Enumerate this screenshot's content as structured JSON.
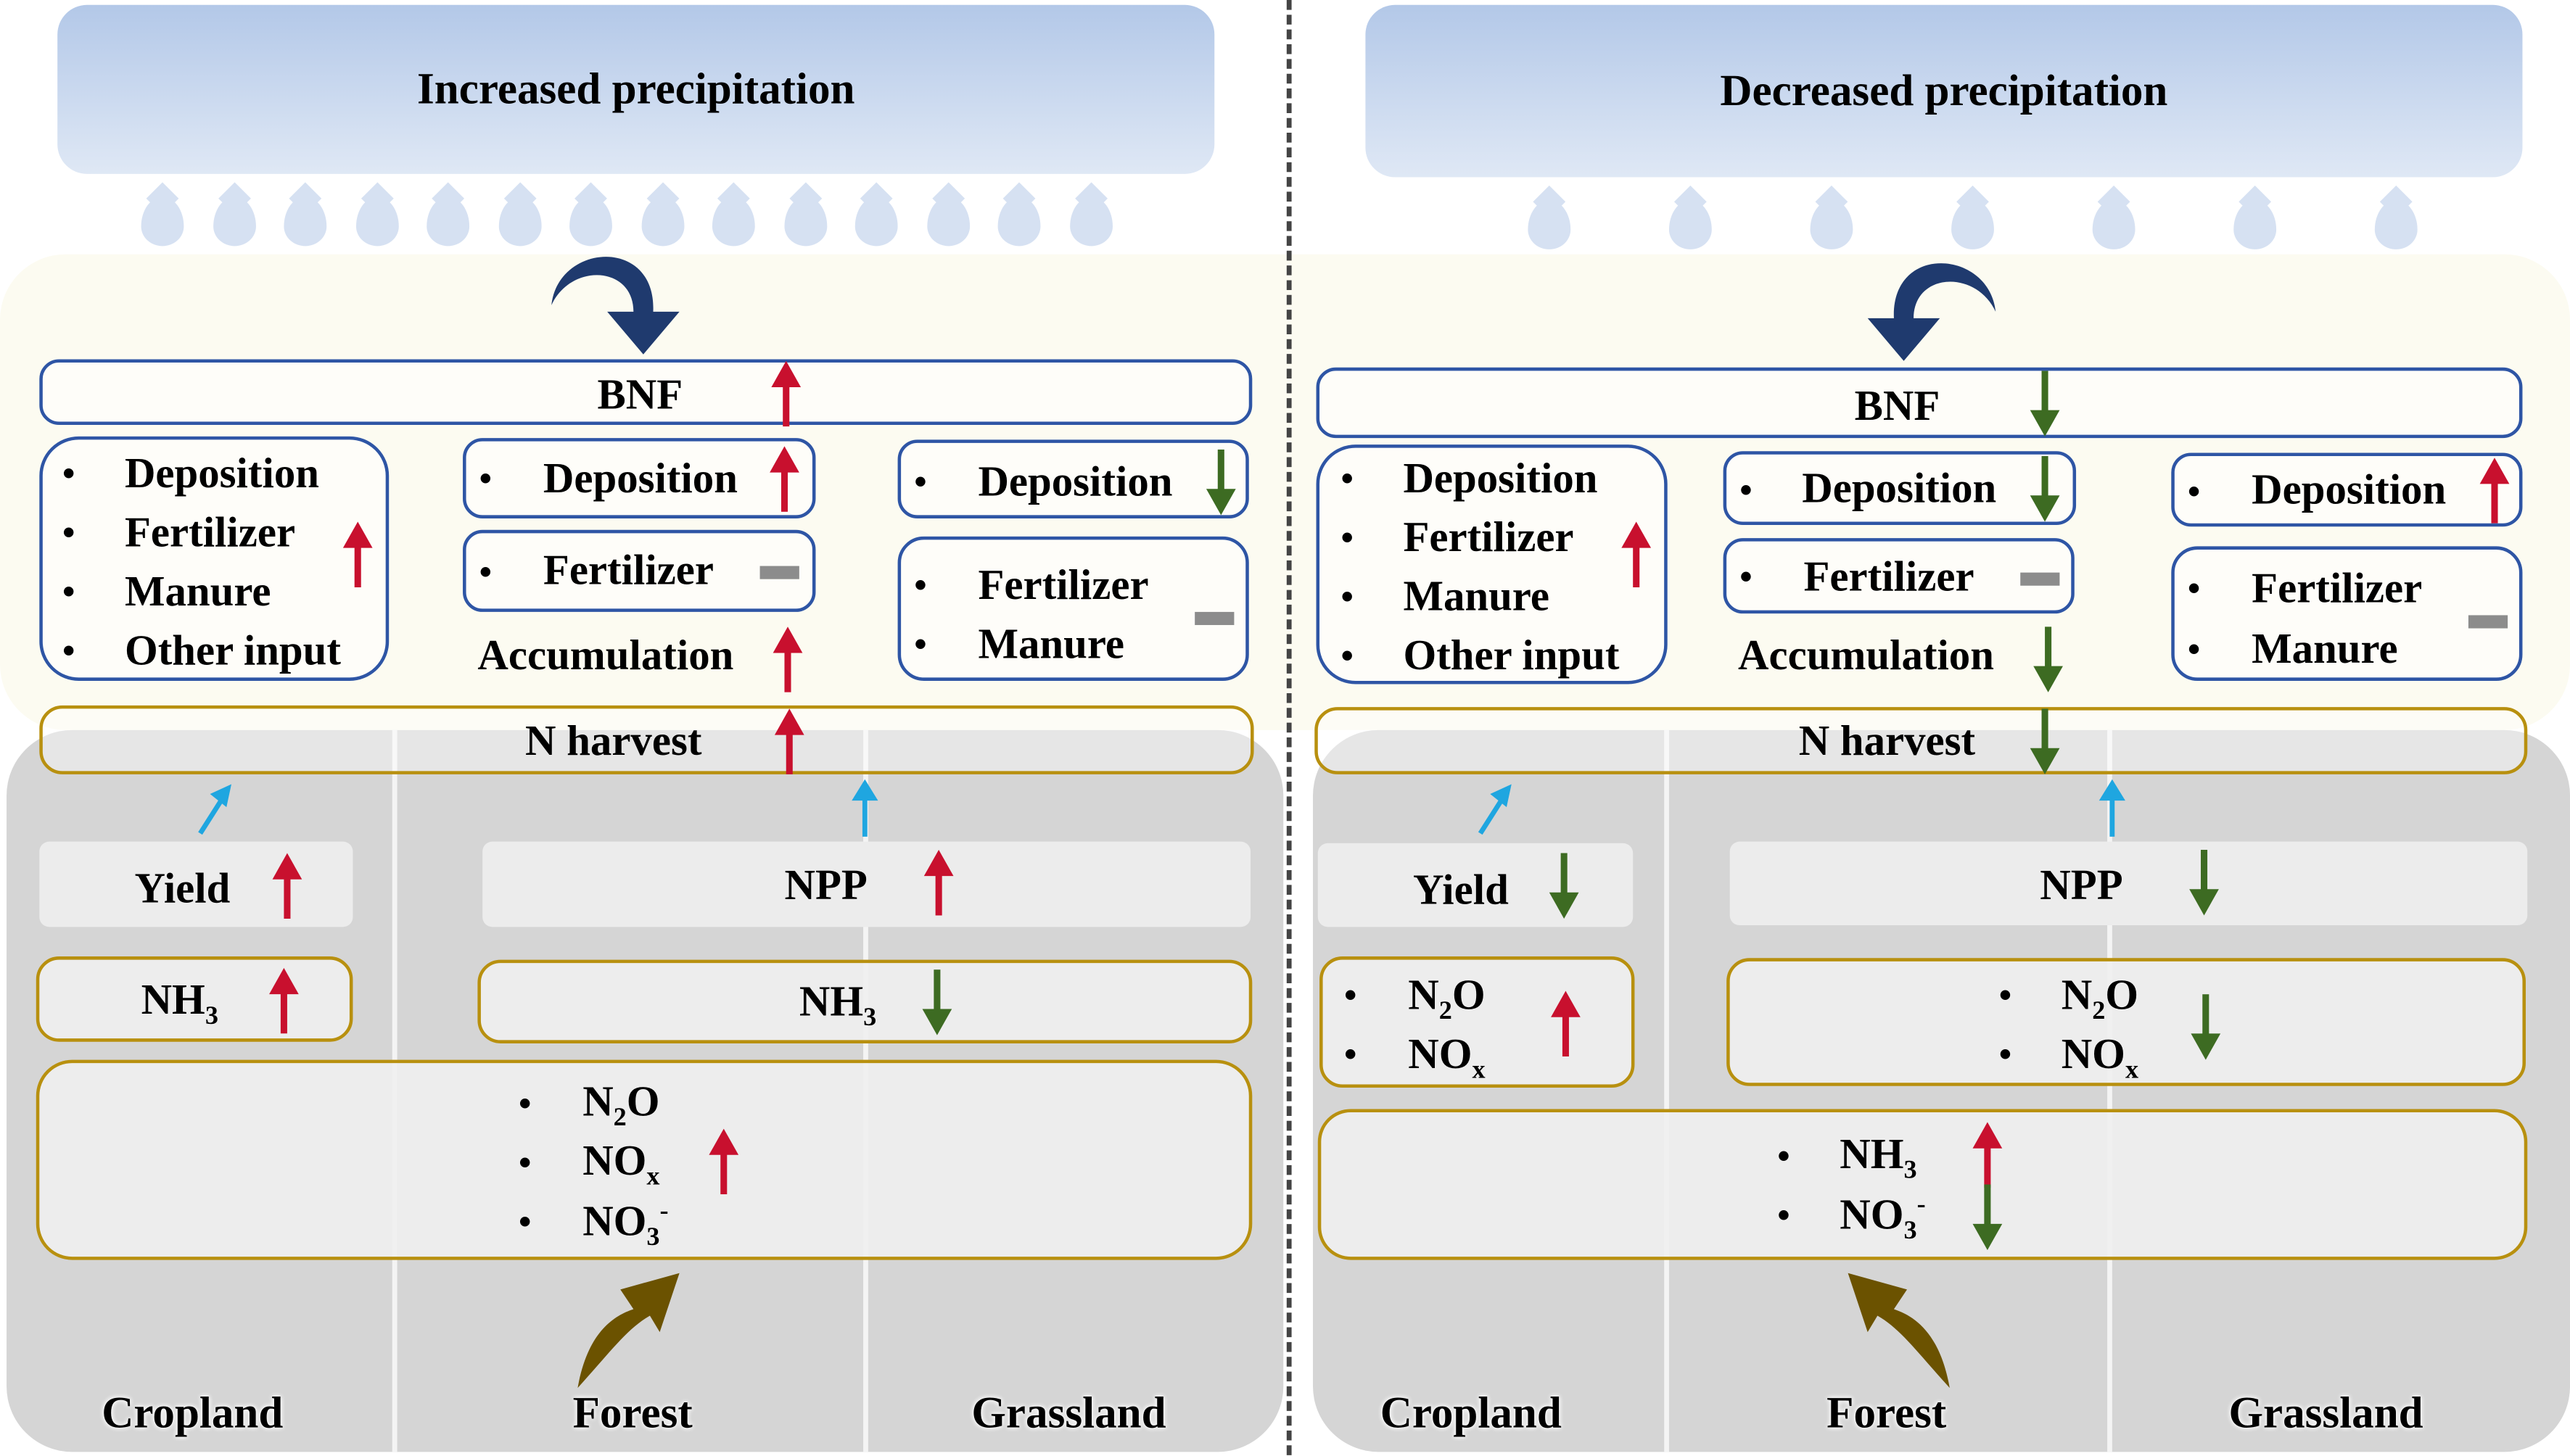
{
  "colors": {
    "increase": "#c8102e",
    "decrease": "#3d6b22",
    "unchanged": "#8c8c8c",
    "bnf_arrow": "#1f3a6e",
    "box_blue": "#2e55a5",
    "box_gold": "#b8900f",
    "uptake_arrow": "#1fa6e0",
    "soil_arrow": "#6b5200"
  },
  "left": {
    "title": "Increased precipitation",
    "bnf": {
      "label": "BNF",
      "trend": "increase"
    },
    "cropland_inputs": {
      "items": [
        "Deposition",
        "Fertilizer",
        "Manure",
        "Other input"
      ],
      "trend": "increase"
    },
    "forest_deposition": {
      "label": "Deposition",
      "trend": "increase"
    },
    "forest_fertilizer": {
      "label": "Fertilizer",
      "trend": "unchanged"
    },
    "forest_accumulation": {
      "label": "Accumulation",
      "trend": "increase"
    },
    "grassland_deposition": {
      "label": "Deposition",
      "trend": "decrease"
    },
    "grassland_inputs": {
      "items": [
        "Fertilizer",
        "Manure"
      ],
      "trend": "unchanged"
    },
    "n_harvest": {
      "label": "N harvest",
      "trend": "increase"
    },
    "yield": {
      "label": "Yield",
      "trend": "increase"
    },
    "npp": {
      "label": "NPP",
      "trend": "increase"
    },
    "cropland_nh3": {
      "base": "NH",
      "sub": "3",
      "trend": "increase"
    },
    "other_nh3": {
      "base": "NH",
      "sub": "3",
      "trend": "decrease"
    },
    "losses": {
      "n2o": {
        "a": "N",
        "sub": "2",
        "b": "O"
      },
      "nox": {
        "a": "NO",
        "sub": "x"
      },
      "no3": {
        "a": "NO",
        "sub": "3",
        "sup": "-"
      },
      "trend": "increase"
    },
    "land_labels": [
      "Cropland",
      "Forest",
      "Grassland"
    ]
  },
  "right": {
    "title": "Decreased precipitation",
    "bnf": {
      "label": "BNF",
      "trend": "decrease"
    },
    "cropland_inputs": {
      "items": [
        "Deposition",
        "Fertilizer",
        "Manure",
        "Other input"
      ],
      "trend": "increase"
    },
    "forest_deposition": {
      "label": "Deposition",
      "trend": "decrease"
    },
    "forest_fertilizer": {
      "label": "Fertilizer",
      "trend": "unchanged"
    },
    "forest_accumulation": {
      "label": "Accumulation",
      "trend": "decrease"
    },
    "grassland_deposition": {
      "label": "Deposition",
      "trend": "increase"
    },
    "grassland_inputs": {
      "items": [
        "Fertilizer",
        "Manure"
      ],
      "trend": "unchanged"
    },
    "n_harvest": {
      "label": "N harvest",
      "trend": "decrease"
    },
    "yield": {
      "label": "Yield",
      "trend": "decrease"
    },
    "npp": {
      "label": "NPP",
      "trend": "decrease"
    },
    "cropland_gas": {
      "n2o": {
        "a": "N",
        "sub": "2",
        "b": "O"
      },
      "nox": {
        "a": "NO",
        "sub": "x"
      },
      "trend": "increase"
    },
    "other_gas": {
      "n2o": {
        "a": "N",
        "sub": "2",
        "b": "O"
      },
      "nox": {
        "a": "NO",
        "sub": "x"
      },
      "trend": "decrease"
    },
    "losses": {
      "nh3": {
        "a": "NH",
        "sub": "3"
      },
      "nh3_trend": "increase",
      "no3": {
        "a": "NO",
        "sub": "3",
        "sup": "-"
      },
      "no3_trend": "decrease"
    },
    "land_labels": [
      "Cropland",
      "Forest",
      "Grassland"
    ]
  }
}
